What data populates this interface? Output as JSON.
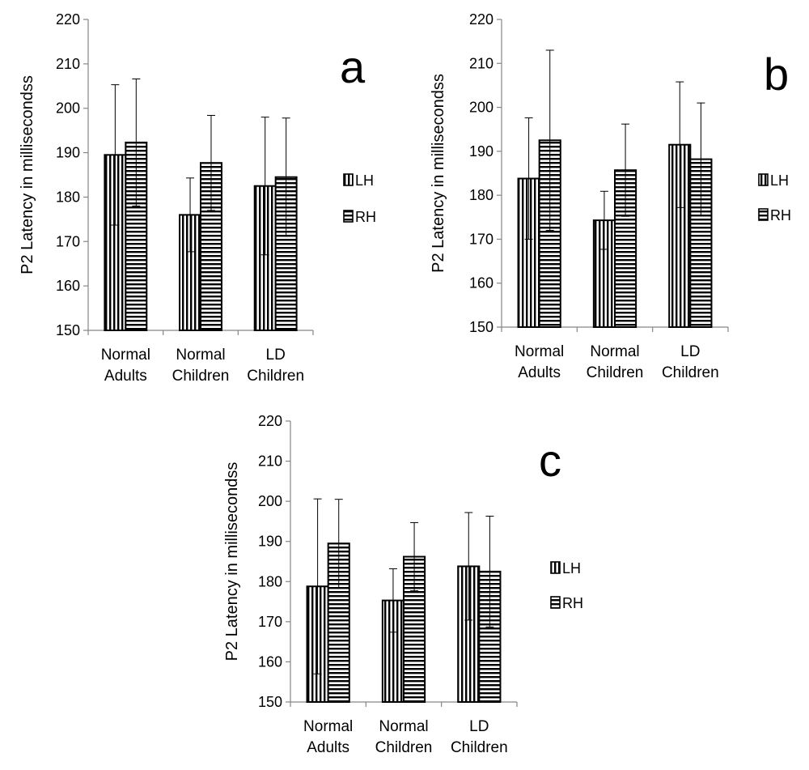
{
  "chart_data": [
    {
      "type": "bar",
      "panel": "a",
      "ylabel": "P2  Latency in millisecondss",
      "ylim": [
        150,
        220
      ],
      "yticks": [
        150,
        160,
        170,
        180,
        190,
        200,
        210,
        220
      ],
      "categories": [
        [
          "Normal",
          "Adults"
        ],
        [
          "Normal",
          "Children"
        ],
        [
          "LD",
          "Children"
        ]
      ],
      "series": [
        {
          "name": "LH",
          "values": [
            189.5,
            176.0,
            182.5
          ],
          "error": [
            15.8,
            8.3,
            15.5
          ]
        },
        {
          "name": "RH",
          "values": [
            192.3,
            187.7,
            184.5
          ],
          "error": [
            14.3,
            10.7,
            13.3
          ]
        }
      ],
      "legend": "right"
    },
    {
      "type": "bar",
      "panel": "b",
      "ylabel": "P2  Latency in millisecondss",
      "ylim": [
        150,
        220
      ],
      "yticks": [
        150,
        160,
        170,
        180,
        190,
        200,
        210,
        220
      ],
      "categories": [
        [
          "Normal",
          "Adults"
        ],
        [
          "Normal",
          "Children"
        ],
        [
          "LD",
          "Children"
        ]
      ],
      "series": [
        {
          "name": "LH",
          "values": [
            183.8,
            174.3,
            191.5
          ],
          "error": [
            13.8,
            6.6,
            14.3
          ]
        },
        {
          "name": "RH",
          "values": [
            192.5,
            185.7,
            188.2
          ],
          "error": [
            20.5,
            10.5,
            12.8
          ]
        }
      ],
      "legend": "right"
    },
    {
      "type": "bar",
      "panel": "c",
      "ylabel": "P2  Latency in millisecondss",
      "ylim": [
        150,
        220
      ],
      "yticks": [
        150,
        160,
        170,
        180,
        190,
        200,
        210,
        220
      ],
      "categories": [
        [
          "Normal",
          "Adults"
        ],
        [
          "Normal",
          "Children"
        ],
        [
          "LD",
          "Children"
        ]
      ],
      "series": [
        {
          "name": "LH",
          "values": [
            178.8,
            175.3,
            183.8
          ],
          "error": [
            21.8,
            7.9,
            13.4
          ]
        },
        {
          "name": "RH",
          "values": [
            189.5,
            186.2,
            182.5
          ],
          "error": [
            11.0,
            8.5,
            13.8
          ]
        }
      ],
      "legend": "right"
    }
  ]
}
